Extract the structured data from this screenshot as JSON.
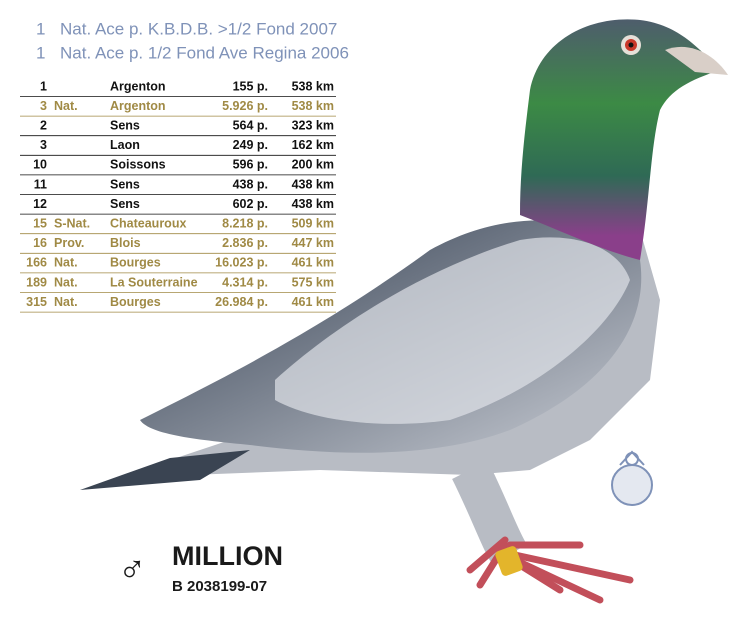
{
  "headlines": [
    {
      "rank": "1",
      "text": "Nat. Ace p. K.B.D.B. >1/2 Fond 2007"
    },
    {
      "rank": "1",
      "text": "Nat. Ace p. 1/2 Fond Ave Regina 2006"
    }
  ],
  "table": {
    "rows": [
      {
        "rank": "1",
        "place": "Argenton",
        "birds": "155 p.",
        "distance": "538 km",
        "color": "#111111"
      },
      {
        "rank": "3",
        "level": "Nat.",
        "place": "Argenton",
        "birds": "5.926 p.",
        "distance": "538 km",
        "color": "#a08a45"
      },
      {
        "rank": "2",
        "place": "Sens",
        "birds": "564 p.",
        "distance": "323 km",
        "color": "#111111"
      },
      {
        "rank": "3",
        "place": "Laon",
        "birds": "249 p.",
        "distance": "162 km",
        "color": "#111111"
      },
      {
        "rank": "10",
        "place": "Soissons",
        "birds": "596 p.",
        "distance": "200 km",
        "color": "#111111"
      },
      {
        "rank": "11",
        "place": "Sens",
        "birds": "438 p.",
        "distance": "438 km",
        "color": "#111111"
      },
      {
        "rank": "12",
        "place": "Sens",
        "birds": "602 p.",
        "distance": "438 km",
        "color": "#111111"
      },
      {
        "rank": "15",
        "level": "S-Nat.",
        "place": "Chateauroux",
        "birds": "8.218 p.",
        "distance": "509 km",
        "color": "#a08a45"
      },
      {
        "rank": "16",
        "level": "Prov.",
        "place": "Blois",
        "birds": "2.836 p.",
        "distance": "447 km",
        "color": "#a08a45"
      },
      {
        "rank": "166",
        "level": "Nat.",
        "place": "Bourges",
        "birds": "16.023 p.",
        "distance": "461 km",
        "color": "#a08a45"
      },
      {
        "rank": "189",
        "level": "Nat.",
        "place": "La Souterraine",
        "birds": "4.314 p.",
        "distance": "575 km",
        "color": "#a08a45"
      },
      {
        "rank": "315",
        "level": "Nat.",
        "place": "Bourges",
        "birds": "26.984 p.",
        "distance": "461 km",
        "color": "#a08a45"
      }
    ]
  },
  "bird": {
    "sex": "♂",
    "name": "MILLION",
    "ring": "B 2038199-07"
  }
}
